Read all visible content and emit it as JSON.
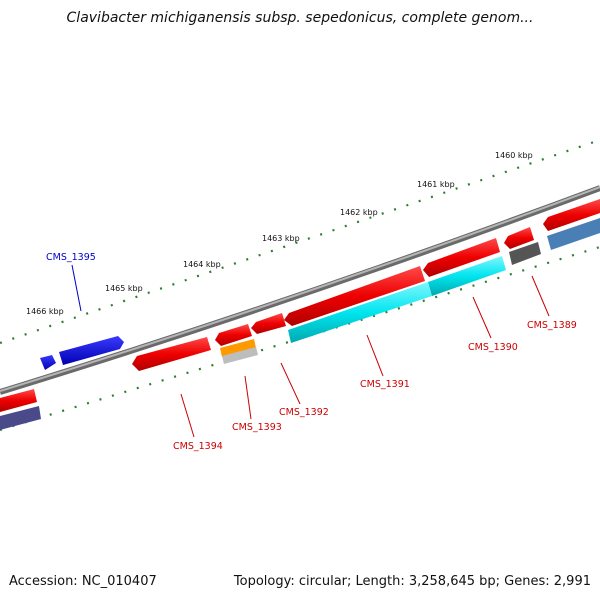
{
  "title": "Clavibacter michiganensis subsp. sepedonicus, complete genom...",
  "footer": {
    "accession": "Accession: NC_010407",
    "topology": "Topology: circular; Length: 3,258,645 bp; Genes: 2,991"
  },
  "ruler_labels": [
    "1460 kbp",
    "1461 kbp",
    "1462 kbp",
    "1463 kbp",
    "1464 kbp",
    "1465 kbp",
    "1466 kbp"
  ],
  "gene_labels": [
    "CMS_1395",
    "CMS_1394",
    "CMS_1393",
    "CMS_1392",
    "CMS_1391",
    "CMS_1390",
    "CMS_1389"
  ],
  "colors": {
    "backbone": "#8a8a8a",
    "tick": "#2e7d32",
    "forward_gene": "#ff0000",
    "reverse_label": "#cc0000",
    "blue_gene": "#0000ee",
    "cyan_gene": "#00e5ee",
    "orange_gene": "#ff9900",
    "navy_gene": "#4a4a8a",
    "steel_gene": "#4a7fb5",
    "dark_gene": "#555555"
  }
}
